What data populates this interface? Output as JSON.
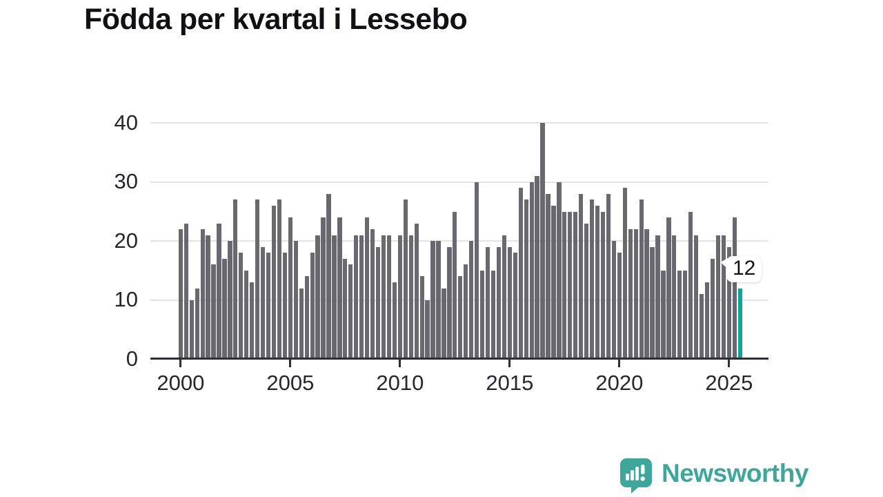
{
  "title": "Födda per kvartal i Lessebo",
  "chart_data": {
    "type": "bar",
    "title": "Födda per kvartal i Lessebo",
    "period": "quarterly",
    "x_start_year": 2000,
    "x_start_quarter": 1,
    "x_end_year": 2025,
    "x_end_quarter": 3,
    "values": [
      22,
      23,
      10,
      12,
      22,
      21,
      16,
      23,
      17,
      20,
      27,
      18,
      15,
      13,
      27,
      19,
      18,
      26,
      27,
      18,
      24,
      20,
      12,
      14,
      18,
      21,
      24,
      28,
      21,
      24,
      17,
      16,
      21,
      21,
      24,
      22,
      19,
      21,
      21,
      13,
      21,
      27,
      21,
      23,
      14,
      10,
      20,
      20,
      12,
      19,
      25,
      14,
      16,
      20,
      30,
      15,
      19,
      15,
      19,
      21,
      19,
      18,
      29,
      27,
      30,
      31,
      40,
      28,
      26,
      30,
      25,
      25,
      25,
      28,
      23,
      27,
      26,
      25,
      28,
      20,
      18,
      29,
      22,
      22,
      27,
      22,
      19,
      21,
      15,
      24,
      21,
      15,
      15,
      25,
      21,
      11,
      13,
      17,
      21,
      21,
      19,
      24,
      12
    ],
    "highlighted_bar_index": 102,
    "annotation": {
      "text": "12",
      "target": "last-bar"
    },
    "ylim": [
      0,
      40
    ],
    "yticks": [
      0,
      10,
      20,
      30,
      40
    ],
    "xticks": [
      2000,
      2005,
      2010,
      2015,
      2020,
      2025
    ],
    "grid": "horizontal",
    "legend": "none",
    "colors": {
      "bar": "#68686e",
      "highlight": "#0fa3a0",
      "axis": "#2e2e33",
      "gridline": "#e2e2e2",
      "tick_text": "#26262b",
      "title_text": "#111115",
      "annotation_bg": "#ffffff",
      "annotation_text": "#111115",
      "logo": "#3ea69b"
    }
  },
  "branding": {
    "logo_text": "Newsworthy",
    "logo_icon": "speech-bubble-bar-chart-icon"
  }
}
